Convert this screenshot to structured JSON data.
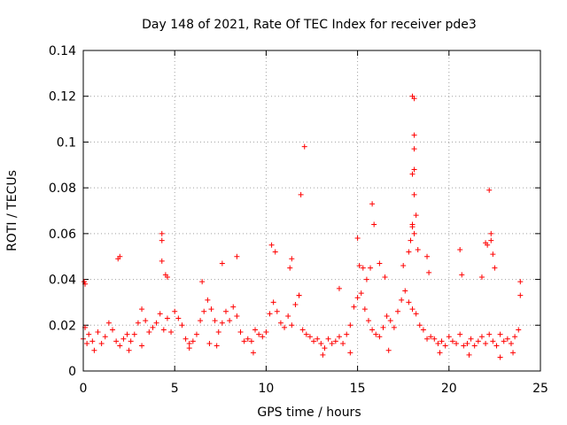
{
  "chart_data": {
    "type": "scatter",
    "title": "Day 148 of 2021, Rate Of TEC Index for receiver pde3",
    "xlabel": "GPS time / hours",
    "ylabel": "ROTI / TECUs",
    "xlim": [
      0,
      25
    ],
    "ylim": [
      0,
      0.14
    ],
    "xticks": [
      0,
      5,
      10,
      15,
      20,
      25
    ],
    "yticks": [
      0,
      0.02,
      0.04,
      0.06,
      0.08,
      0.1,
      0.12,
      0.14
    ],
    "xtick_labels": [
      "0",
      "5",
      "10",
      "15",
      "20",
      "25"
    ],
    "ytick_labels": [
      "0",
      "0.02",
      "0.04",
      "0.06",
      "0.08",
      "0.1",
      "0.12",
      "0.14"
    ],
    "grid": true,
    "marker": "+",
    "color": "#ff0000",
    "series": [
      {
        "name": "ROTI",
        "x": [
          0.0,
          0.1,
          0.2,
          0.3,
          0.5,
          0.8,
          1.0,
          1.2,
          1.4,
          1.6,
          1.8,
          2.0,
          2.2,
          2.4,
          2.6,
          2.8,
          3.0,
          3.2,
          3.4,
          3.6,
          3.8,
          4.0,
          4.2,
          4.4,
          4.6,
          4.8,
          5.0,
          5.2,
          5.4,
          5.6,
          5.8,
          6.0,
          6.2,
          6.4,
          6.6,
          6.8,
          7.0,
          7.2,
          7.4,
          7.6,
          7.8,
          8.0,
          8.2,
          8.4,
          8.6,
          8.8,
          9.0,
          9.2,
          9.4,
          9.6,
          9.8,
          10.0,
          10.2,
          10.4,
          10.6,
          10.8,
          11.0,
          11.2,
          11.4,
          11.6,
          11.8,
          12.0,
          12.2,
          12.4,
          12.6,
          12.8,
          13.0,
          13.2,
          13.4,
          13.6,
          13.8,
          14.0,
          14.2,
          14.4,
          14.6,
          14.8,
          15.0,
          15.2,
          15.4,
          15.6,
          15.8,
          16.0,
          16.2,
          16.4,
          16.6,
          16.8,
          17.0,
          17.2,
          17.4,
          17.6,
          17.8,
          18.0,
          18.2,
          18.4,
          18.6,
          18.8,
          19.0,
          19.2,
          19.4,
          19.6,
          19.8,
          20.0,
          20.2,
          20.4,
          20.6,
          20.8,
          21.0,
          21.2,
          21.4,
          21.6,
          21.8,
          22.0,
          22.2,
          22.4,
          22.6,
          22.8,
          23.0,
          23.2,
          23.4,
          23.6,
          23.8,
          0.05,
          0.1,
          1.9,
          2.0,
          4.3,
          4.3,
          4.3,
          4.5,
          4.6,
          6.5,
          7.6,
          8.4,
          10.3,
          10.5,
          11.3,
          11.4,
          11.9,
          12.1,
          11.8,
          14.0,
          15.0,
          15.1,
          15.3,
          15.5,
          15.7,
          15.8,
          15.9,
          16.2,
          16.5,
          17.5,
          17.8,
          17.9,
          18.0,
          18.0,
          18.0,
          18.1,
          18.1,
          18.1,
          18.1,
          18.0,
          18.1,
          18.2,
          18.1,
          18.3,
          18.8,
          18.9,
          20.6,
          20.7,
          21.8,
          22.0,
          22.1,
          22.2,
          22.3,
          22.3,
          22.4,
          22.5,
          23.9,
          23.9,
          0.6,
          2.5,
          3.2,
          5.8,
          6.9,
          7.3,
          9.3,
          13.1,
          14.6,
          16.7,
          19.5,
          21.1,
          22.8,
          23.5
        ],
        "y": [
          0.014,
          0.019,
          0.012,
          0.016,
          0.013,
          0.017,
          0.012,
          0.015,
          0.021,
          0.018,
          0.013,
          0.011,
          0.014,
          0.016,
          0.013,
          0.016,
          0.021,
          0.027,
          0.022,
          0.017,
          0.019,
          0.021,
          0.025,
          0.018,
          0.023,
          0.017,
          0.026,
          0.023,
          0.02,
          0.014,
          0.012,
          0.013,
          0.016,
          0.022,
          0.026,
          0.031,
          0.027,
          0.022,
          0.017,
          0.021,
          0.026,
          0.022,
          0.028,
          0.024,
          0.017,
          0.013,
          0.014,
          0.013,
          0.018,
          0.016,
          0.015,
          0.017,
          0.025,
          0.03,
          0.026,
          0.021,
          0.019,
          0.024,
          0.02,
          0.029,
          0.033,
          0.018,
          0.016,
          0.015,
          0.013,
          0.014,
          0.012,
          0.01,
          0.014,
          0.012,
          0.013,
          0.015,
          0.012,
          0.016,
          0.02,
          0.028,
          0.032,
          0.034,
          0.027,
          0.022,
          0.018,
          0.016,
          0.015,
          0.019,
          0.024,
          0.022,
          0.019,
          0.026,
          0.031,
          0.035,
          0.03,
          0.027,
          0.025,
          0.02,
          0.018,
          0.014,
          0.015,
          0.014,
          0.012,
          0.013,
          0.011,
          0.015,
          0.013,
          0.012,
          0.016,
          0.011,
          0.012,
          0.014,
          0.011,
          0.013,
          0.015,
          0.012,
          0.016,
          0.013,
          0.011,
          0.016,
          0.013,
          0.014,
          0.012,
          0.015,
          0.018,
          0.039,
          0.038,
          0.049,
          0.05,
          0.06,
          0.057,
          0.048,
          0.042,
          0.041,
          0.039,
          0.047,
          0.05,
          0.055,
          0.052,
          0.045,
          0.049,
          0.077,
          0.098,
          0.033,
          0.036,
          0.058,
          0.046,
          0.045,
          0.04,
          0.045,
          0.073,
          0.064,
          0.047,
          0.041,
          0.046,
          0.052,
          0.057,
          0.063,
          0.064,
          0.086,
          0.088,
          0.097,
          0.103,
          0.119,
          0.12,
          0.077,
          0.068,
          0.06,
          0.053,
          0.05,
          0.043,
          0.053,
          0.042,
          0.041,
          0.056,
          0.055,
          0.079,
          0.057,
          0.06,
          0.051,
          0.045,
          0.039,
          0.033,
          0.009,
          0.009,
          0.011,
          0.01,
          0.012,
          0.011,
          0.008,
          0.007,
          0.008,
          0.009,
          0.008,
          0.007,
          0.006,
          0.008
        ]
      }
    ]
  }
}
